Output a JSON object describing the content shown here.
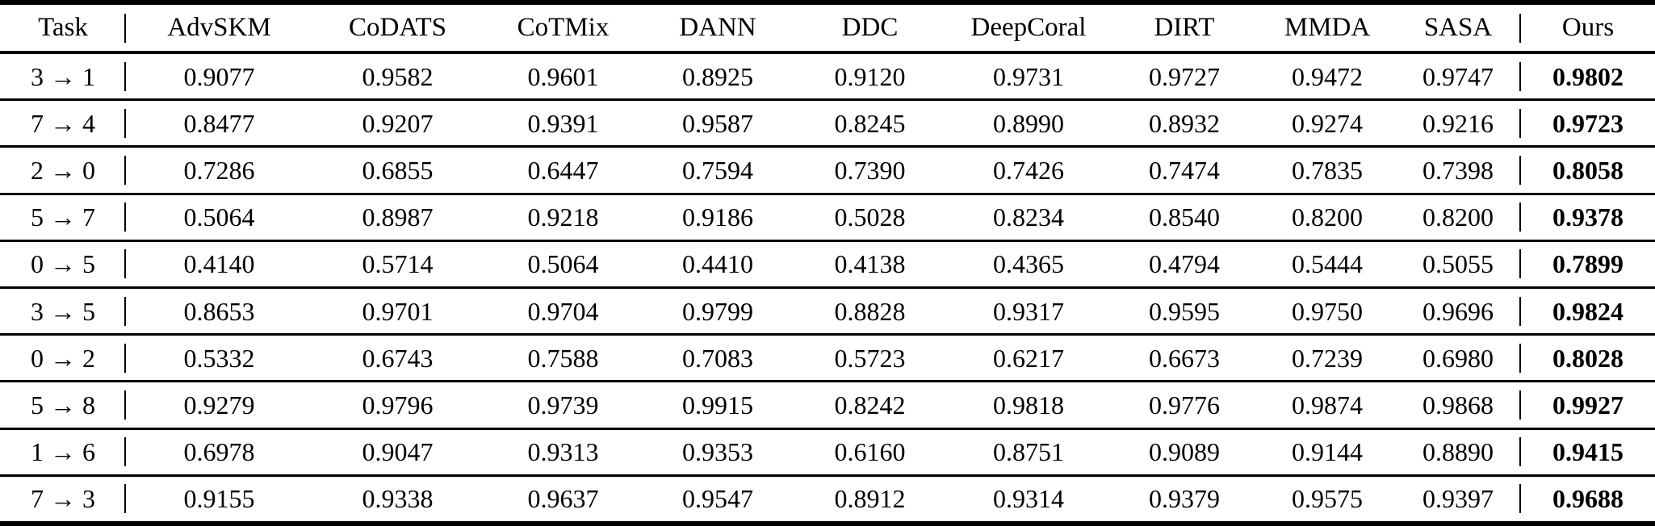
{
  "table": {
    "header": {
      "task": "Task",
      "methods": [
        "AdvSKM",
        "CoDATS",
        "CoTMix",
        "DANN",
        "DDC",
        "DeepCoral",
        "DIRT",
        "MMDA",
        "SASA"
      ],
      "ours": "Ours"
    },
    "rows": [
      {
        "task": "3 → 1",
        "values": [
          "0.9077",
          "0.9582",
          "0.9601",
          "0.8925",
          "0.9120",
          "0.9731",
          "0.9727",
          "0.9472",
          "0.9747"
        ],
        "ours": "0.9802"
      },
      {
        "task": "7 → 4",
        "values": [
          "0.8477",
          "0.9207",
          "0.9391",
          "0.9587",
          "0.8245",
          "0.8990",
          "0.8932",
          "0.9274",
          "0.9216"
        ],
        "ours": "0.9723"
      },
      {
        "task": "2 → 0",
        "values": [
          "0.7286",
          "0.6855",
          "0.6447",
          "0.7594",
          "0.7390",
          "0.7426",
          "0.7474",
          "0.7835",
          "0.7398"
        ],
        "ours": "0.8058"
      },
      {
        "task": "5 → 7",
        "values": [
          "0.5064",
          "0.8987",
          "0.9218",
          "0.9186",
          "0.5028",
          "0.8234",
          "0.8540",
          "0.8200",
          "0.8200"
        ],
        "ours": "0.9378"
      },
      {
        "task": "0 → 5",
        "values": [
          "0.4140",
          "0.5714",
          "0.5064",
          "0.4410",
          "0.4138",
          "0.4365",
          "0.4794",
          "0.5444",
          "0.5055"
        ],
        "ours": "0.7899"
      },
      {
        "task": "3 → 5",
        "values": [
          "0.8653",
          "0.9701",
          "0.9704",
          "0.9799",
          "0.8828",
          "0.9317",
          "0.9595",
          "0.9750",
          "0.9696"
        ],
        "ours": "0.9824"
      },
      {
        "task": "0 → 2",
        "values": [
          "0.5332",
          "0.6743",
          "0.7588",
          "0.7083",
          "0.5723",
          "0.6217",
          "0.6673",
          "0.7239",
          "0.6980"
        ],
        "ours": "0.8028"
      },
      {
        "task": "5 → 8",
        "values": [
          "0.9279",
          "0.9796",
          "0.9739",
          "0.9915",
          "0.8242",
          "0.9818",
          "0.9776",
          "0.9874",
          "0.9868"
        ],
        "ours": "0.9927"
      },
      {
        "task": "1 → 6",
        "values": [
          "0.6978",
          "0.9047",
          "0.9313",
          "0.9353",
          "0.6160",
          "0.8751",
          "0.9089",
          "0.9144",
          "0.8890"
        ],
        "ours": "0.9415"
      },
      {
        "task": "7 → 3",
        "values": [
          "0.9155",
          "0.9338",
          "0.9637",
          "0.9547",
          "0.8912",
          "0.9314",
          "0.9379",
          "0.9575",
          "0.9397"
        ],
        "ours": "0.9688"
      }
    ]
  }
}
